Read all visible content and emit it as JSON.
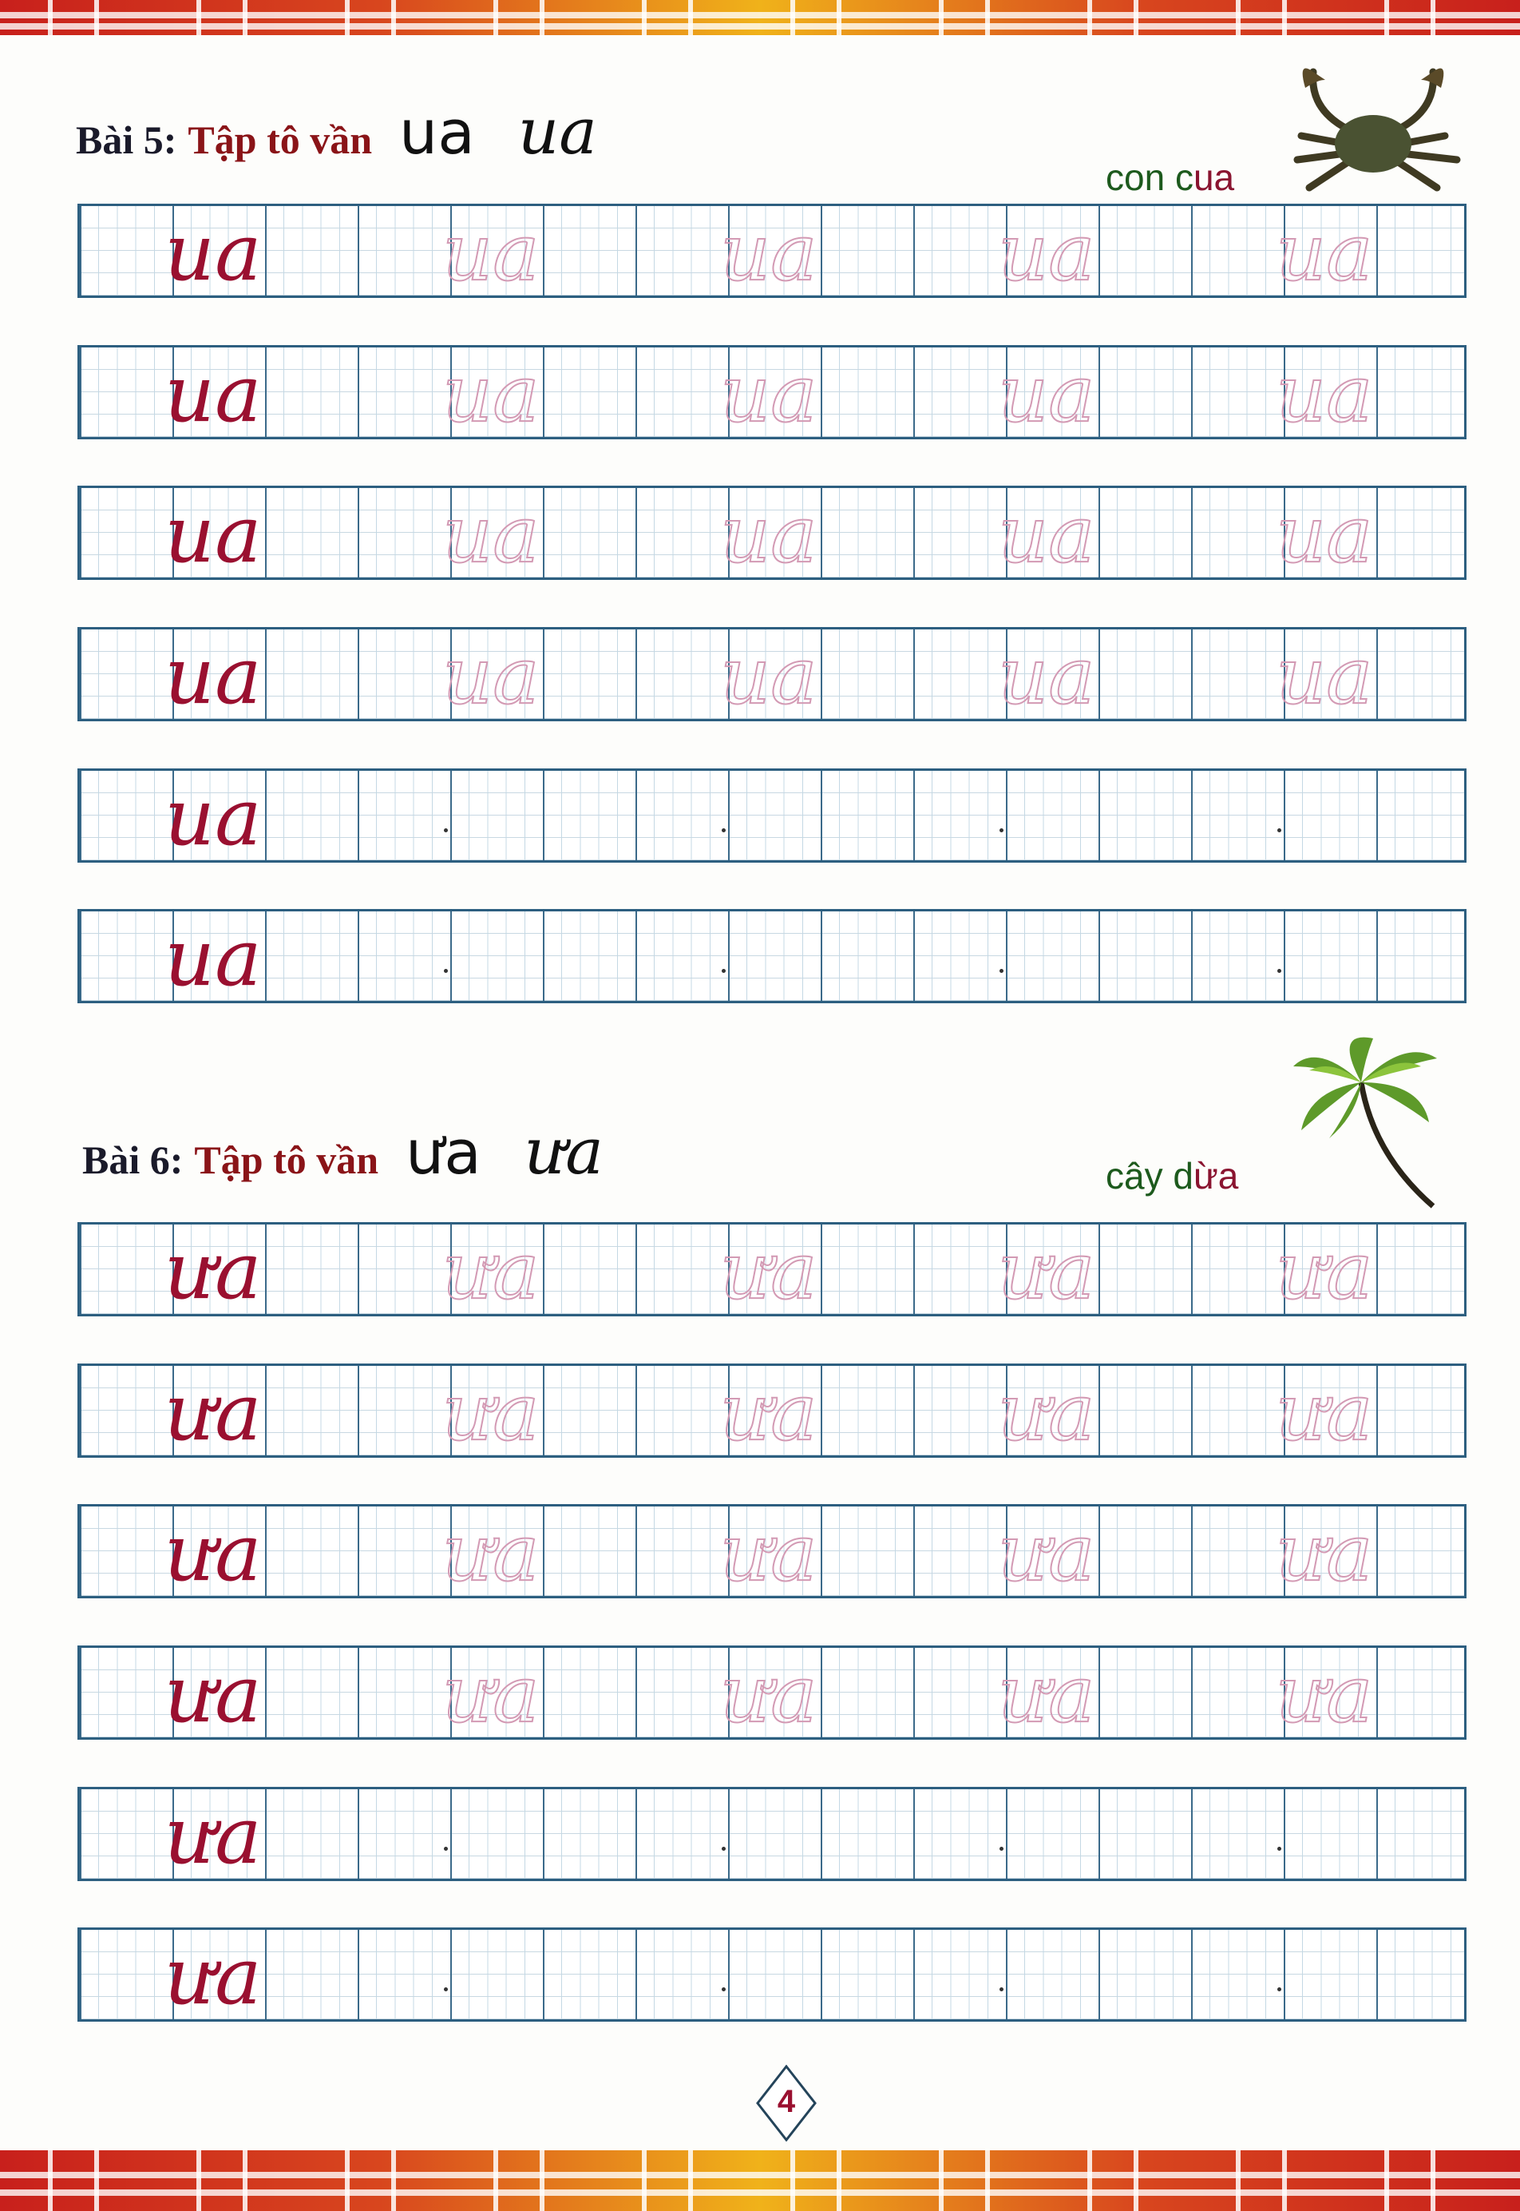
{
  "sections": [
    {
      "lesson_label": "Bài 5:",
      "title": "Tập tô vần",
      "print": "ua",
      "cursive": "ua",
      "caption_prefix": "con c",
      "caption_accent": "ua",
      "picture": "crab-icon",
      "rows": [
        {
          "sample": "ua",
          "traced": [
            "ua",
            "ua",
            "ua",
            "ua"
          ]
        },
        {
          "sample": "ua",
          "traced": [
            "ua",
            "ua",
            "ua",
            "ua"
          ]
        },
        {
          "sample": "ua",
          "traced": [
            "ua",
            "ua",
            "ua",
            "ua"
          ]
        },
        {
          "sample": "ua",
          "traced": [
            "ua",
            "ua",
            "ua",
            "ua"
          ]
        },
        {
          "sample": "ua",
          "traced": []
        },
        {
          "sample": "ua",
          "traced": []
        }
      ]
    },
    {
      "lesson_label": "Bài 6:",
      "title": "Tập tô vần",
      "print": "ưa",
      "cursive": "ưa",
      "caption_prefix": "cây d",
      "caption_accent": "ừa",
      "picture": "palm-tree-icon",
      "rows": [
        {
          "sample": "ưa",
          "traced": [
            "ưa",
            "ưa",
            "ưa",
            "ưa"
          ]
        },
        {
          "sample": "ưa",
          "traced": [
            "ưa",
            "ưa",
            "ưa",
            "ưa"
          ]
        },
        {
          "sample": "ưa",
          "traced": [
            "ưa",
            "ưa",
            "ưa",
            "ưa"
          ]
        },
        {
          "sample": "ưa",
          "traced": [
            "ưa",
            "ưa",
            "ưa",
            "ưa"
          ]
        },
        {
          "sample": "ưa",
          "traced": []
        },
        {
          "sample": "ưa",
          "traced": []
        }
      ]
    }
  ],
  "page_number": "4",
  "colors": {
    "sample_ink": "#9a1030",
    "trace_ink": "#d39ab4",
    "grid": "#2d5f80",
    "title": "#8a1418",
    "caption": "#1d5a1d",
    "border_red": "#c8201c",
    "border_gold": "#f0b21a"
  }
}
